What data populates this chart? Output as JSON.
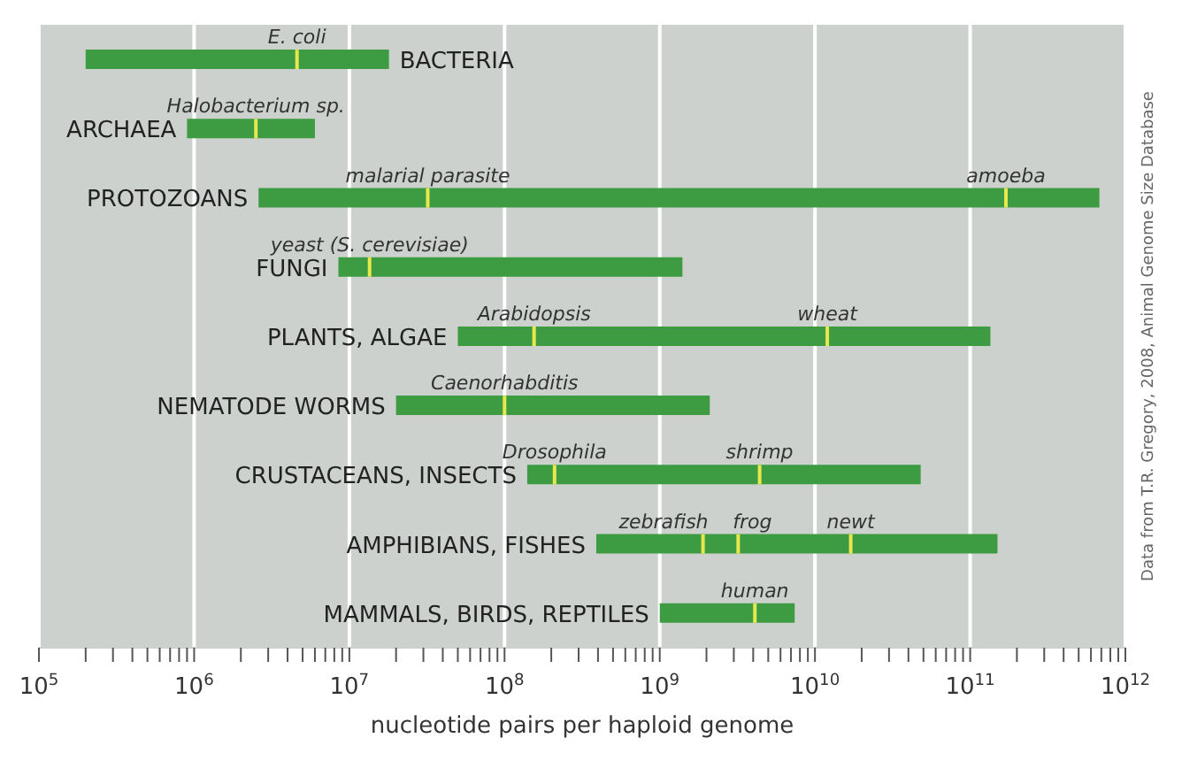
{
  "chart_data": {
    "type": "bar",
    "orientation": "horizontal",
    "log": "x",
    "xlabel": "nucleotide pairs per haploid genome",
    "categories": [
      "BACTERIA",
      "ARCHAEA",
      "PROTOZOANS",
      "FUNGI",
      "PLANTS, ALGAE",
      "NEMATODE WORMS",
      "CRUSTACEANS, INSECTS",
      "AMPHIBIANS, FISHES",
      "MAMMALS, BIRDS, REPTILES"
    ],
    "series": [
      {
        "type": "bar",
        "color": "#3d9b41",
        "base": [
          200000,
          900000,
          2600000,
          8500000,
          50000000,
          20000000,
          140000000,
          390000000,
          1000000000
        ],
        "values": [
          17800000,
          5100000,
          679997400000,
          1391500000,
          134950000000,
          2080000000,
          47860000000,
          149610000000,
          6400000000
        ]
      }
    ],
    "xlim": [
      100000,
      1000000000000
    ],
    "xticks": [
      {
        "value": 100000,
        "label": "10$^{5}$"
      },
      {
        "value": 200000,
        "label": null
      },
      {
        "value": 300000,
        "label": null
      },
      {
        "value": 400000,
        "label": null
      },
      {
        "value": 500000,
        "label": null
      },
      {
        "value": 600000,
        "label": null
      },
      {
        "value": 700000,
        "label": null
      },
      {
        "value": 800000,
        "label": null
      },
      {
        "value": 900000,
        "label": null
      },
      {
        "value": 1000000,
        "label": "10$^{6}$"
      },
      {
        "value": 2000000,
        "label": null
      },
      {
        "value": 3000000,
        "label": null
      },
      {
        "value": 4000000,
        "label": null
      },
      {
        "value": 5000000,
        "label": null
      },
      {
        "value": 6000000,
        "label": null
      },
      {
        "value": 7000000,
        "label": null
      },
      {
        "value": 8000000,
        "label": null
      },
      {
        "value": 9000000,
        "label": null
      },
      {
        "value": 10000000,
        "label": "10$^{7}$"
      },
      {
        "value": 20000000,
        "label": null
      },
      {
        "value": 30000000,
        "label": null
      },
      {
        "value": 40000000,
        "label": null
      },
      {
        "value": 50000000,
        "label": null
      },
      {
        "value": 60000000,
        "label": null
      },
      {
        "value": 70000000,
        "label": null
      },
      {
        "value": 80000000,
        "label": null
      },
      {
        "value": 90000000,
        "label": null
      },
      {
        "value": 100000000,
        "label": "10$^{8}$"
      },
      {
        "value": 200000000,
        "label": null
      },
      {
        "value": 300000000,
        "label": null
      },
      {
        "value": 400000000,
        "label": null
      },
      {
        "value": 500000000,
        "label": null
      },
      {
        "value": 600000000,
        "label": null
      },
      {
        "value": 700000000,
        "label": null
      },
      {
        "value": 800000000,
        "label": null
      },
      {
        "value": 900000000,
        "label": null
      },
      {
        "value": 1000000000,
        "label": "10$^{9}$"
      },
      {
        "value": 2000000000,
        "label": null
      },
      {
        "value": 3000000000,
        "label": null
      },
      {
        "value": 4000000000,
        "label": null
      },
      {
        "value": 5000000000,
        "label": null
      },
      {
        "value": 6000000000,
        "label": null
      },
      {
        "value": 7000000000,
        "label": null
      },
      {
        "value": 8000000000,
        "label": null
      },
      {
        "value": 9000000000,
        "label": null
      },
      {
        "value": 10000000000,
        "label": "10$^{10}$"
      },
      {
        "value": 20000000000,
        "label": null
      },
      {
        "value": 30000000000,
        "label": null
      },
      {
        "value": 40000000000,
        "label": null
      },
      {
        "value": 50000000000,
        "label": null
      },
      {
        "value": 60000000000,
        "label": null
      },
      {
        "value": 70000000000,
        "label": null
      },
      {
        "value": 80000000000,
        "label": null
      },
      {
        "value": 90000000000,
        "label": null
      },
      {
        "value": 100000000000,
        "label": "10$^{11}$"
      },
      {
        "value": 200000000000,
        "label": null
      },
      {
        "value": 300000000000,
        "label": null
      },
      {
        "value": 400000000000,
        "label": null
      },
      {
        "value": 500000000000,
        "label": null
      },
      {
        "value": 600000000000,
        "label": null
      },
      {
        "value": 700000000000,
        "label": null
      },
      {
        "value": 800000000000,
        "label": null
      },
      {
        "value": 900000000000,
        "label": null
      },
      {
        "value": 1000000000000,
        "label": "10$^{12}$"
      }
    ],
    "grid": "x",
    "legend": false,
    "annotations": [
      {
        "text": "E. coli",
        "x": 4600000,
        "y": "BACTERIA"
      },
      {
        "text": "Halobacterium sp.",
        "x": 2500000,
        "y": "ARCHAEA"
      },
      {
        "text": "malarial parasite",
        "x": 32000000,
        "y": "PROTOZOANS"
      },
      {
        "text": "amoeba",
        "x": 170000000000,
        "y": "PROTOZOANS"
      },
      {
        "text": "yeast (S. cerevisiae)",
        "x": 13500000,
        "y": "FUNGI"
      },
      {
        "text": "Arabidopsis",
        "x": 155000000,
        "y": "PLANTS, ALGAE"
      },
      {
        "text": "wheat",
        "x": 12000000000,
        "y": "PLANTS, ALGAE"
      },
      {
        "text": "Caenorhabditis",
        "x": 100000000,
        "y": "NEMATODE WORMS"
      },
      {
        "text": "Drosophila",
        "x": 210000000,
        "y": "CRUSTACEANS, INSECTS"
      },
      {
        "text": "shrimp",
        "x": 4400000000,
        "y": "CRUSTACEANS, INSECTS"
      },
      {
        "text": "zebrafish",
        "x": 1900000000,
        "y": "AMPHIBIANS, FISHES"
      },
      {
        "text": "frog",
        "x": 3200000000,
        "y": "AMPHIBIANS, FISHES"
      },
      {
        "text": "newt",
        "x": 17000000000,
        "y": "AMPHIBIANS, FISHES"
      },
      {
        "text": "human",
        "x": 4100000000,
        "y": "MAMMALS, BIRDS, REPTILES"
      },
      "Data from T.R. Gregory, 2008, Animal Genome Size Database"
    ]
  }
}
